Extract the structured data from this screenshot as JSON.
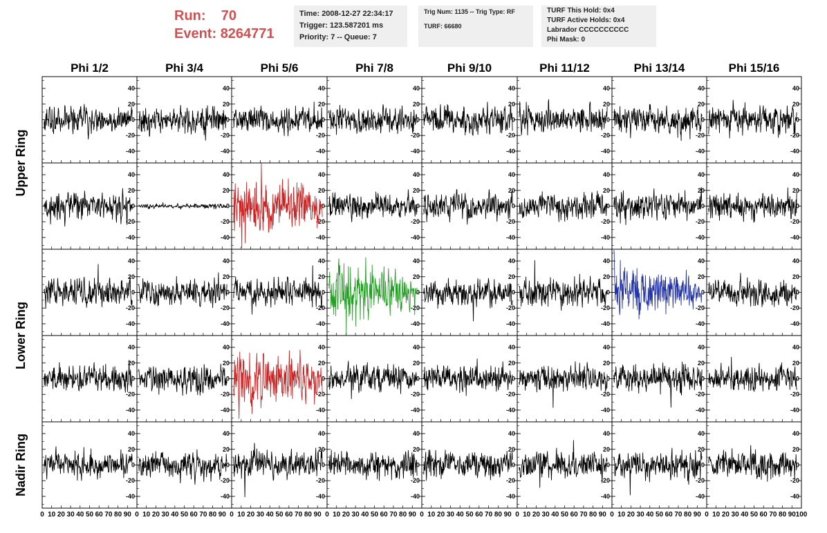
{
  "header": {
    "run_label": "Run:",
    "run_value": "70",
    "event_label": "Event:",
    "event_value": "8264771",
    "accent_color": "#d05050"
  },
  "info1": {
    "line1": "Time: 2008-12-27 22:34:17",
    "line2": "Trigger: 123.587201 ms",
    "line3": "Priority: 7 -- Queue: 7"
  },
  "info2": {
    "line1": "Trig Num: 1135 -- Trig Type: RF",
    "line2": "TURF: 66680"
  },
  "info3": {
    "line1": "TURF This Hold: 0x4",
    "line2": "TURF Active Holds: 0x4",
    "line3": "Labrador CCCCCCCCCC",
    "line4": "Phi Mask: 0"
  },
  "chart_data": {
    "type": "line",
    "columns": [
      "Phi 1/2",
      "Phi 3/4",
      "Phi 5/6",
      "Phi 7/8",
      "Phi 9/10",
      "Phi 11/12",
      "Phi 13/14",
      "Phi 15/16"
    ],
    "rows": [
      "Upper Ring",
      "Upper Ring",
      "Lower Ring",
      "Lower Ring",
      "Nadir Ring"
    ],
    "ring_labels": [
      {
        "label": "Upper Ring",
        "rows": [
          0,
          1
        ]
      },
      {
        "label": "Lower Ring",
        "rows": [
          2,
          3
        ]
      },
      {
        "label": "Nadir Ring",
        "rows": [
          4
        ]
      }
    ],
    "xlim": [
      0,
      100
    ],
    "ylim": [
      -55,
      55
    ],
    "yticks": [
      -40,
      -20,
      0,
      20,
      40
    ],
    "xtick_labels": [
      "0",
      "10",
      "20",
      "30",
      "40",
      "50",
      "60",
      "70",
      "80",
      "90",
      "100"
    ],
    "grid": false,
    "default_color": "#000000",
    "highlights": [
      {
        "row": 1,
        "col": 2,
        "color": "#cc2222",
        "amplitude": 1.9
      },
      {
        "row": 3,
        "col": 2,
        "color": "#cc2222",
        "amplitude": 1.9
      },
      {
        "row": 2,
        "col": 3,
        "color": "#22a022",
        "amplitude": 2.0
      },
      {
        "row": 2,
        "col": 6,
        "color": "#2233aa",
        "amplitude": 1.7
      }
    ],
    "flat_channels": [
      {
        "row": 1,
        "col": 1,
        "amplitude": 0.18
      }
    ],
    "samples_per_trace": 260,
    "typical_amplitude_mV": 15
  }
}
